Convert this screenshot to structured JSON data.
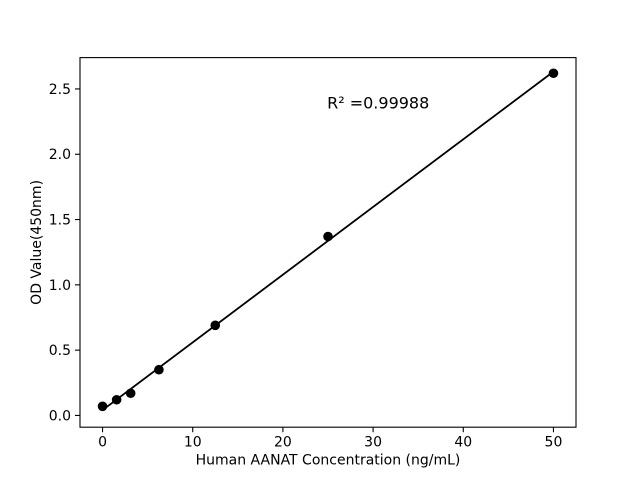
{
  "chart_data": {
    "type": "scatter",
    "x": [
      0,
      1.56,
      3.12,
      6.25,
      12.5,
      25,
      50
    ],
    "y": [
      0.07,
      0.12,
      0.17,
      0.35,
      0.69,
      1.37,
      2.62
    ],
    "fit_line": true,
    "annotation": "R² =0.99988",
    "annotation_xy": [
      24.9,
      2.35
    ],
    "xlabel": "Human AANAT Concentration (ng/mL)",
    "ylabel": "OD Value(450nm)",
    "xlim": [
      -2.5,
      52.5
    ],
    "ylim": [
      -0.09,
      2.74
    ],
    "xticks": [
      0,
      10,
      20,
      30,
      40,
      50
    ],
    "xtick_labels": [
      "0",
      "10",
      "20",
      "30",
      "40",
      "50"
    ],
    "yticks": [
      0.0,
      0.5,
      1.0,
      1.5,
      2.0,
      2.5
    ],
    "ytick_labels": [
      "0.0",
      "0.5",
      "1.0",
      "1.5",
      "2.0",
      "2.5"
    ],
    "line_color": "#000000",
    "marker_color": "#000000",
    "axis_color": "#000000",
    "background_color": "#ffffff",
    "grid": false,
    "legend": null
  }
}
